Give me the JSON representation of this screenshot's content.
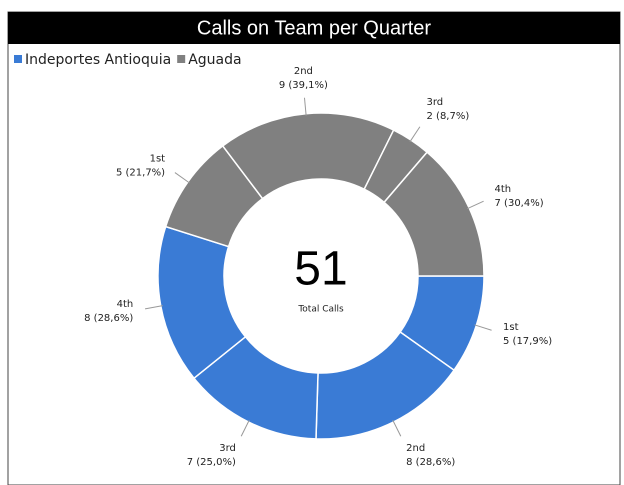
{
  "chart_data": {
    "type": "donut",
    "title": "Calls on Team per Quarter",
    "categories": [
      "1st",
      "2nd",
      "3rd",
      "4th"
    ],
    "series": [
      {
        "name": "Indeportes Antioquia",
        "color": "#3a7bd5",
        "values": [
          5,
          8,
          7,
          8
        ],
        "value_labels": [
          "5 (17,9%)",
          "8 (28,6%)",
          "7 (25,0%)",
          "8 (28,6%)"
        ]
      },
      {
        "name": "Aguada",
        "color": "#808080",
        "values": [
          5,
          9,
          2,
          7
        ],
        "value_labels": [
          "5 (21,7%)",
          "9 (39,1%)",
          "2 (8,7%)",
          "7 (30,4%)"
        ]
      }
    ],
    "total": 51,
    "total_label": "Total Calls"
  }
}
